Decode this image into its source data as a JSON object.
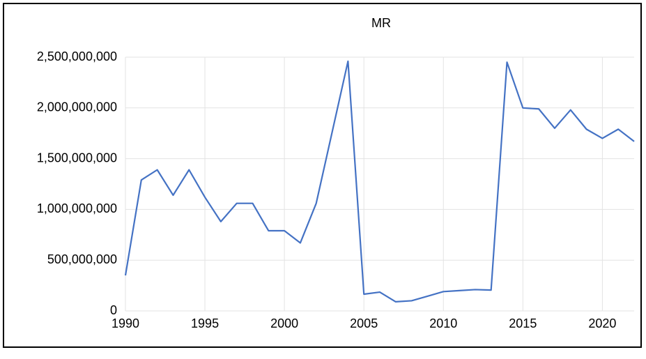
{
  "chart_data": {
    "type": "line",
    "title": "MR",
    "x": [
      1990,
      1991,
      1992,
      1993,
      1994,
      1995,
      1996,
      1997,
      1998,
      1999,
      2000,
      2001,
      2002,
      2003,
      2004,
      2005,
      2006,
      2007,
      2008,
      2009,
      2010,
      2011,
      2012,
      2013,
      2014,
      2015,
      2016,
      2017,
      2018,
      2019,
      2020,
      2021,
      2022
    ],
    "series": [
      {
        "color": "#4472c4",
        "values": [
          350000000,
          1290000000,
          1390000000,
          1140000000,
          1390000000,
          1120000000,
          880000000,
          1060000000,
          1060000000,
          790000000,
          790000000,
          670000000,
          1060000000,
          1760000000,
          2460000000,
          165000000,
          185000000,
          90000000,
          100000000,
          145000000,
          190000000,
          200000000,
          210000000,
          205000000,
          2450000000,
          2000000000,
          1990000000,
          1800000000,
          1980000000,
          1790000000,
          1700000000,
          1790000000,
          1670000000
        ]
      }
    ],
    "xlim": [
      1990,
      2022
    ],
    "xticks": [
      1990,
      1995,
      2000,
      2005,
      2010,
      2015,
      2020
    ],
    "ylim": [
      0,
      2500000000
    ],
    "yticks": [
      0,
      {
        "value": 500000000,
        "label": "500,000,000"
      },
      {
        "value": 1000000000,
        "label": "1,000,000,000"
      },
      {
        "value": 1500000000,
        "label": "1,500,000,000"
      },
      {
        "value": 2000000000,
        "label": "2,000,000,000"
      },
      {
        "value": 2500000000,
        "label": "2,500,000,000"
      }
    ],
    "grid": true
  }
}
